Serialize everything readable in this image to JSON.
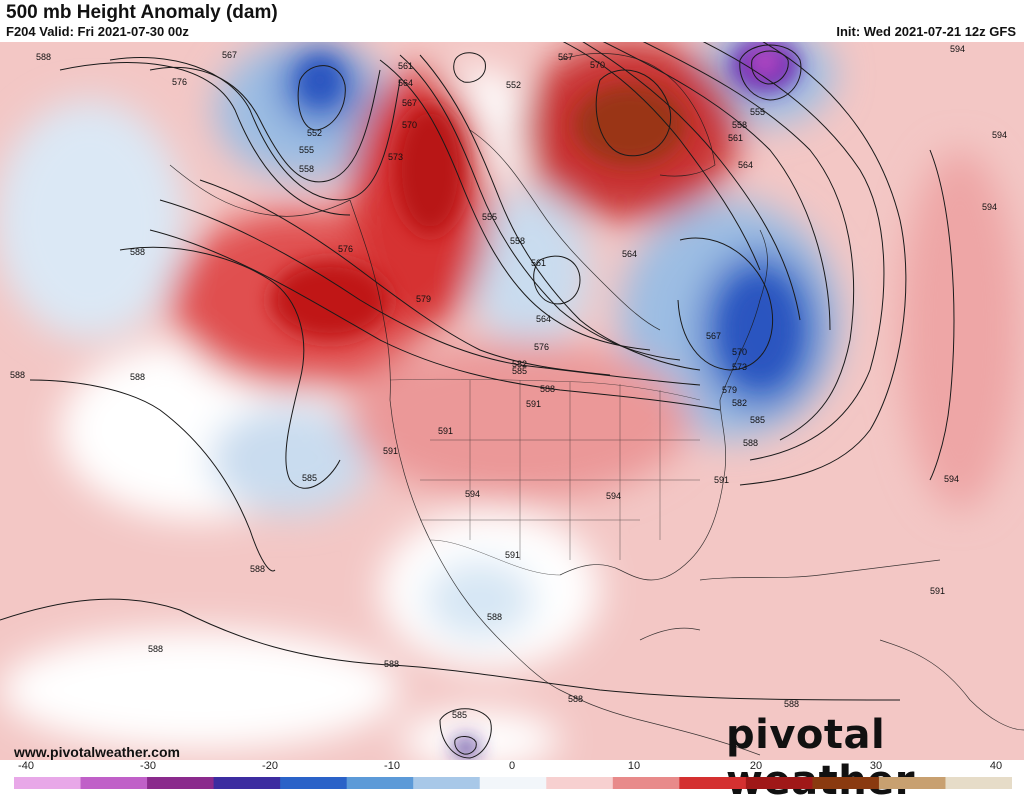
{
  "header": {
    "title": "500 mb Height Anomaly (dam)",
    "valid": "F204 Valid: Fri 2021-07-30 00z",
    "init": "Init: Wed 2021-07-21 12z GFS"
  },
  "footer": {
    "url": "www.pivotalweather.com",
    "brand": "pivotal weather"
  },
  "colorbar": {
    "ticks": [
      "-40",
      "-30",
      "-20",
      "-10",
      "0",
      "10",
      "20",
      "30",
      "40"
    ],
    "colors": [
      "#e8a8e8",
      "#c060c8",
      "#8a2a8c",
      "#3c2ca0",
      "#2a62c8",
      "#5c9ad8",
      "#a8c8e8",
      "#f2f6fa",
      "#f7d0d0",
      "#e88a8a",
      "#d43030",
      "#a01818",
      "#8a3a10",
      "#c8a070",
      "#e6dcc8"
    ]
  },
  "contour_labels": [
    "588",
    "576",
    "567",
    "552",
    "555",
    "558",
    "561",
    "564",
    "567",
    "570",
    "573",
    "552",
    "570",
    "567",
    "555",
    "558",
    "561",
    "564",
    "594",
    "594",
    "594",
    "588",
    "576",
    "555",
    "558",
    "561",
    "564",
    "564",
    "567",
    "570",
    "573",
    "576",
    "579",
    "582",
    "585",
    "588",
    "591",
    "579",
    "582",
    "585",
    "588",
    "591",
    "594",
    "594",
    "591",
    "588",
    "585",
    "594",
    "591",
    "588",
    "591",
    "588",
    "588",
    "588",
    "588",
    "588",
    "585",
    "588",
    "591"
  ],
  "colors": {
    "positive_strong": "#c21a1a",
    "positive_weak": "#f6c8c8",
    "negative_strong": "#2f5ec8",
    "negative_weak": "#c9dcef",
    "contour": "#1a1a1a"
  }
}
